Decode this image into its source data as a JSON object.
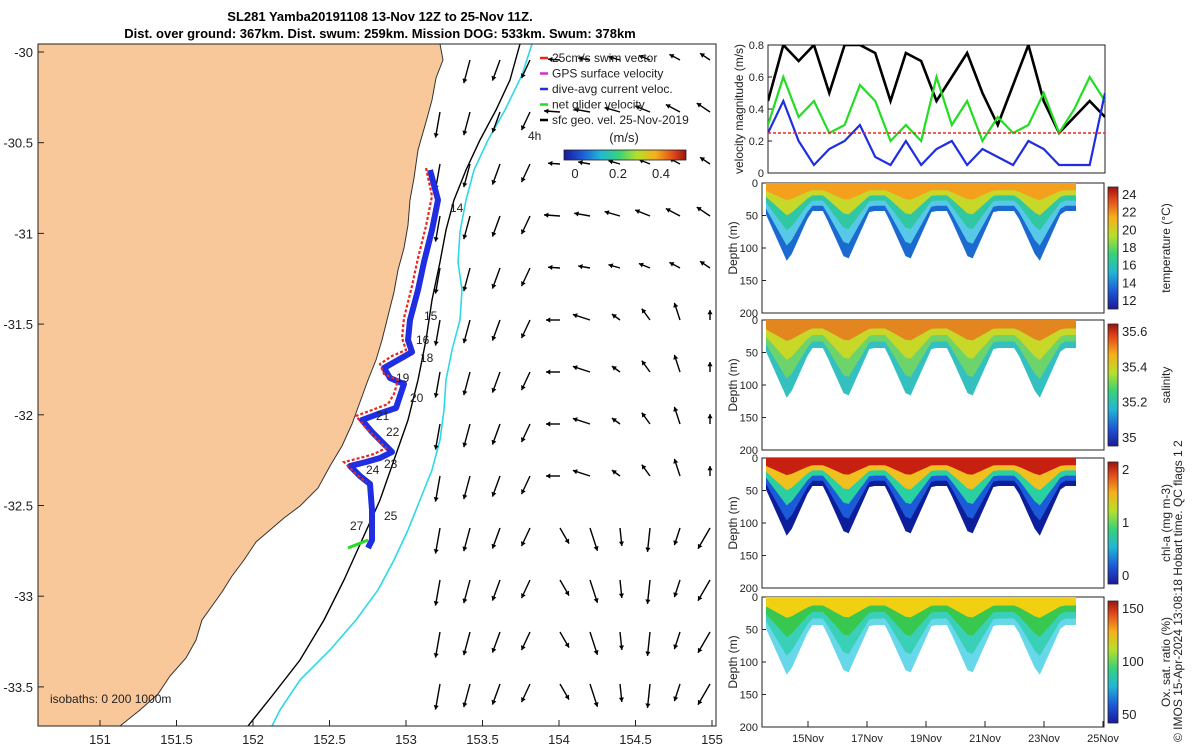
{
  "title": {
    "line1": "SL281 Yamba20191108 13-Nov 12Z to 25-Nov 11Z.",
    "line2": "Dist. over ground: 367km. Dist. swum: 259km. Mission DOG: 533km. Swum: 378km"
  },
  "map": {
    "lon_ticks": [
      "151",
      "151.5",
      "152",
      "152.5",
      "153",
      "153.5",
      "154",
      "154.5",
      "155"
    ],
    "lat_ticks": [
      "-30",
      "-30.5",
      "-31",
      "-31.5",
      "-32",
      "-32.5",
      "-33",
      "-33.5"
    ],
    "legend": [
      {
        "label": "25cm/s swim vector",
        "color": "#e8281e"
      },
      {
        "label": "GPS surface velocity",
        "color": "#d62bd6"
      },
      {
        "label": "dive-avg current veloc.",
        "color": "#1f2ee0"
      },
      {
        "label": "net glider velocity",
        "color": "#22dd22"
      },
      {
        "label": "sfc geo. vel. 25-Nov-2019",
        "color": "#000000"
      }
    ],
    "colorbar_unit": "(m/s)",
    "colorbar_ticks": [
      "0",
      "0.2",
      "0.4"
    ],
    "isobaths_label": "isobaths: 0  200  1000m",
    "time_marker": "4h",
    "day_labels": [
      "14",
      "15",
      "16",
      "18",
      "19",
      "20",
      "21",
      "22",
      "23",
      "24",
      "25",
      "27"
    ],
    "land_color": "#f9c89a",
    "contour_200_color": "#000000",
    "contour_1000_color": "#2ed8e6"
  },
  "chart_data": [
    {
      "type": "line",
      "ylabel": "velocity magnitude (m/s)",
      "ylim": [
        0,
        0.8
      ],
      "yticks": [
        "0",
        "0.2",
        "0.4",
        "0.6",
        "0.8"
      ],
      "x": [
        14.0,
        14.5,
        15.0,
        15.5,
        16.0,
        16.5,
        17.0,
        17.5,
        18.0,
        18.5,
        19.0,
        19.5,
        20.0,
        20.5,
        21.0,
        21.5,
        22.0,
        22.5,
        23.0,
        23.5,
        24.0,
        24.5,
        25.0
      ],
      "series": [
        {
          "color": "#000000",
          "values": [
            0.45,
            0.8,
            0.7,
            0.8,
            0.5,
            0.8,
            0.8,
            0.75,
            0.45,
            0.75,
            0.7,
            0.45,
            0.6,
            0.75,
            0.5,
            0.3,
            0.55,
            0.8,
            0.45,
            0.25,
            0.35,
            0.45,
            0.35
          ]
        },
        {
          "color": "#22dd22",
          "values": [
            0.3,
            0.6,
            0.35,
            0.45,
            0.25,
            0.3,
            0.55,
            0.45,
            0.2,
            0.3,
            0.2,
            0.6,
            0.3,
            0.45,
            0.2,
            0.35,
            0.25,
            0.3,
            0.5,
            0.25,
            0.4,
            0.6,
            0.45
          ]
        },
        {
          "color": "#1f2ee0",
          "values": [
            0.25,
            0.45,
            0.2,
            0.05,
            0.15,
            0.2,
            0.3,
            0.1,
            0.05,
            0.2,
            0.05,
            0.15,
            0.2,
            0.05,
            0.15,
            0.1,
            0.05,
            0.2,
            0.15,
            0.05,
            0.05,
            0.05,
            0.5
          ]
        },
        {
          "color": "#e8281e",
          "dashed": true,
          "values": [
            0.25,
            0.25,
            0.25,
            0.25,
            0.25,
            0.25,
            0.25,
            0.25,
            0.25,
            0.25,
            0.25,
            0.25,
            0.25,
            0.25,
            0.25,
            0.25,
            0.25,
            0.25,
            0.25,
            0.25,
            0.25,
            0.25,
            0.25
          ]
        }
      ]
    },
    {
      "type": "heatmap",
      "ylabel": "Depth (m)",
      "yticks": [
        "0",
        "50",
        "100",
        "150",
        "200"
      ],
      "colorbar_label": "temperature (°C)",
      "colorbar_ticks": [
        "24",
        "22",
        "20",
        "18",
        "16",
        "14",
        "12"
      ],
      "colors": [
        "#f4a01c",
        "#c8d828",
        "#31c7a3",
        "#58c8e8",
        "#1b6ad0"
      ]
    },
    {
      "type": "heatmap",
      "ylabel": "Depth (m)",
      "yticks": [
        "0",
        "50",
        "100",
        "150",
        "200"
      ],
      "colorbar_label": "salinity",
      "colorbar_ticks": [
        "35.6",
        "35.4",
        "35.2",
        "35"
      ],
      "colors": [
        "#e4861f",
        "#c8d828",
        "#6cd46a",
        "#35c0c0"
      ]
    },
    {
      "type": "heatmap",
      "ylabel": "Depth (m)",
      "yticks": [
        "0",
        "50",
        "100",
        "150",
        "200"
      ],
      "colorbar_label": "chl-a (mg m-3)",
      "colorbar_ticks": [
        "2",
        "1",
        "0"
      ],
      "colors": [
        "#c82010",
        "#f0c020",
        "#2ad0a0",
        "#1b5ad8",
        "#0c1e9a"
      ]
    },
    {
      "type": "heatmap",
      "ylabel": "Depth (m)",
      "yticks": [
        "0",
        "50",
        "100",
        "150",
        "200"
      ],
      "colorbar_label": "Ox. sat. ratio (%)",
      "colorbar_ticks": [
        "150",
        "100",
        "50"
      ],
      "colors": [
        "#f0d010",
        "#38c850",
        "#3ad0b8",
        "#66d8ea"
      ],
      "x_ticks": [
        "15Nov",
        "17Nov",
        "19Nov",
        "21Nov",
        "23Nov",
        "25Nov"
      ]
    }
  ],
  "sidebar_note": "© IMOS 15-Apr-2024 13:08:18 Hobart time. QC flags 1  2"
}
